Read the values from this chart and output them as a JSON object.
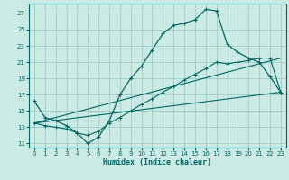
{
  "xlabel": "Humidex (Indice chaleur)",
  "bg_color": "#cceae4",
  "grid_color": "#9ecdc4",
  "line_color": "#006666",
  "xlim": [
    -0.5,
    23.5
  ],
  "ylim": [
    10.5,
    28.2
  ],
  "xticks": [
    0,
    1,
    2,
    3,
    4,
    5,
    6,
    7,
    8,
    9,
    10,
    11,
    12,
    13,
    14,
    15,
    16,
    17,
    18,
    19,
    20,
    21,
    22,
    23
  ],
  "yticks": [
    11,
    13,
    15,
    17,
    19,
    21,
    23,
    25,
    27
  ],
  "curve1_x": [
    0,
    1,
    2,
    3,
    4,
    5,
    6,
    7,
    8,
    9,
    10,
    11,
    12,
    13,
    14,
    15,
    16,
    17,
    18,
    19,
    20,
    21,
    22,
    23
  ],
  "curve1_y": [
    16.2,
    14.2,
    13.8,
    13.2,
    12.3,
    11.0,
    11.8,
    13.8,
    17.0,
    19.0,
    20.5,
    22.5,
    24.5,
    25.5,
    25.8,
    26.2,
    27.5,
    27.3,
    23.2,
    22.2,
    21.5,
    21.0,
    19.2,
    17.3
  ],
  "curve2_x": [
    0,
    1,
    2,
    3,
    4,
    5,
    6,
    7,
    8,
    9,
    10,
    11,
    12,
    13,
    14,
    15,
    16,
    17,
    18,
    19,
    20,
    21,
    22,
    23
  ],
  "curve2_y": [
    13.5,
    13.2,
    13.0,
    12.8,
    12.3,
    12.0,
    12.5,
    13.5,
    14.2,
    15.0,
    15.8,
    16.5,
    17.3,
    18.0,
    18.8,
    19.5,
    20.2,
    21.0,
    20.8,
    21.0,
    21.2,
    21.5,
    21.5,
    17.3
  ],
  "curve3_x": [
    0,
    23
  ],
  "curve3_y": [
    13.5,
    17.3
  ],
  "curve4_x": [
    0,
    23
  ],
  "curve4_y": [
    13.5,
    21.5
  ]
}
